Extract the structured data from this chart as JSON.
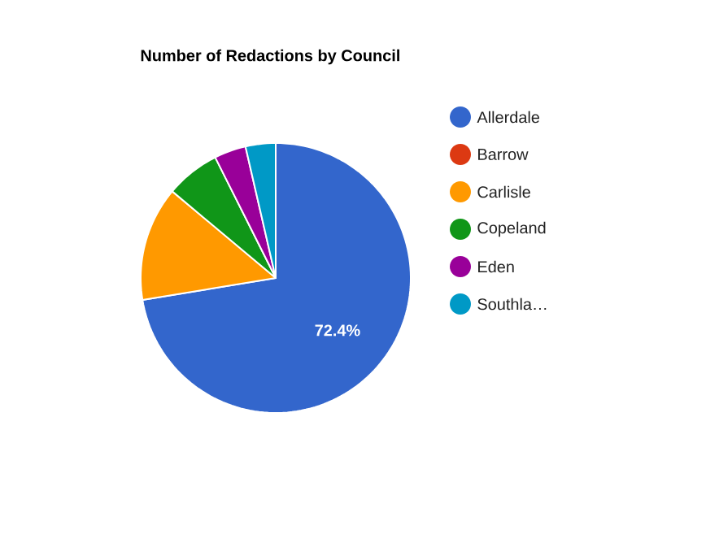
{
  "chart_data": {
    "type": "pie",
    "title": "Number of Redactions by Council",
    "categories": [
      "Allerdale",
      "Barrow",
      "Carlisle",
      "Copeland",
      "Eden",
      "Southla…"
    ],
    "values": [
      72.4,
      0,
      13.7,
      6.5,
      3.8,
      3.6
    ],
    "colors": [
      "#3366cc",
      "#dc3912",
      "#ff9900",
      "#109618",
      "#990099",
      "#0099c6"
    ],
    "value_labels": [
      "72.4%",
      null,
      null,
      null,
      null,
      null
    ],
    "legend": "right"
  }
}
